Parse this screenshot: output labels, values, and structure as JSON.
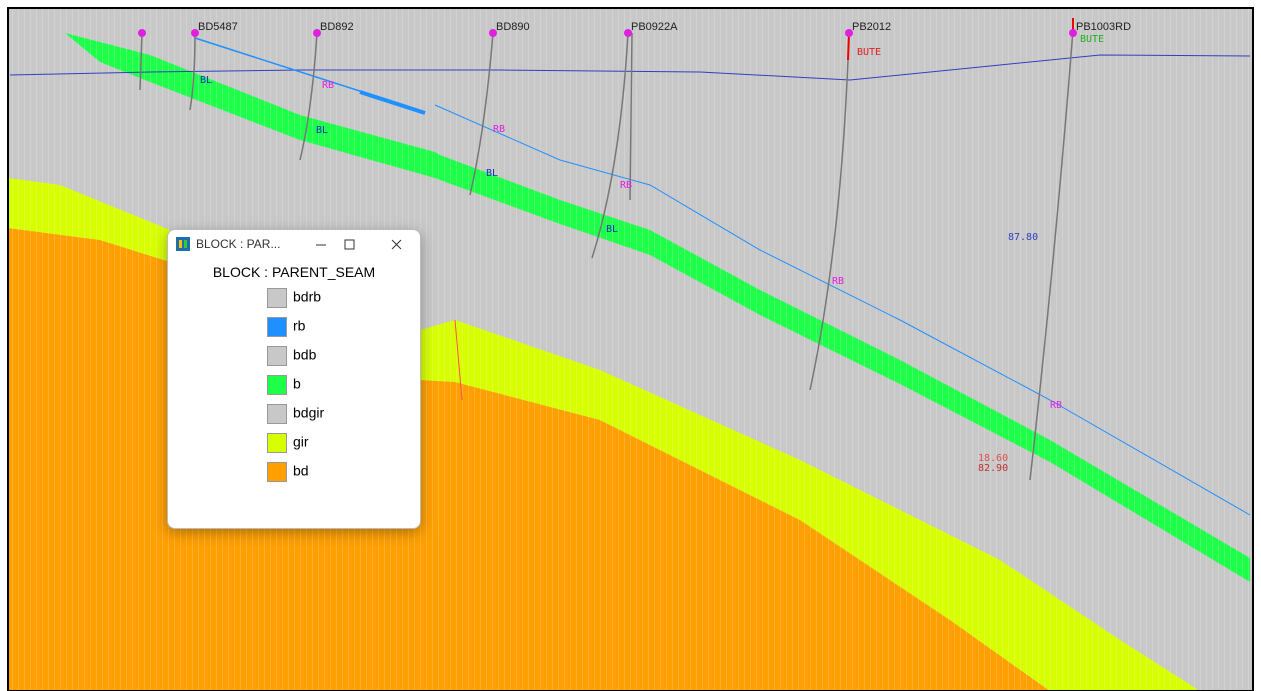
{
  "window": {
    "title": "BLOCK : PAR...",
    "heading": "BLOCK : PARENT_SEAM",
    "items": [
      {
        "label": "bdrb",
        "color": "#c8c8c8"
      },
      {
        "label": "rb",
        "color": "#1e90ff"
      },
      {
        "label": "bdb",
        "color": "#c8c8c8"
      },
      {
        "label": "b",
        "color": "#1eff4a"
      },
      {
        "label": "bdgir",
        "color": "#c8c8c8"
      },
      {
        "label": "gir",
        "color": "#d8ff00"
      },
      {
        "label": "bd",
        "color": "#ffa000"
      }
    ]
  },
  "boreholes": [
    "BD5487",
    "BD892",
    "BD890",
    "PB0922A",
    "PB2012",
    "PB1003RD"
  ],
  "annotations": [
    "RB",
    "RB",
    "RB",
    "RB",
    "RB",
    "BL",
    "BL",
    "BL",
    "BL",
    "BUTE",
    "BUTE",
    "87.80",
    "18.60",
    "82.90"
  ]
}
